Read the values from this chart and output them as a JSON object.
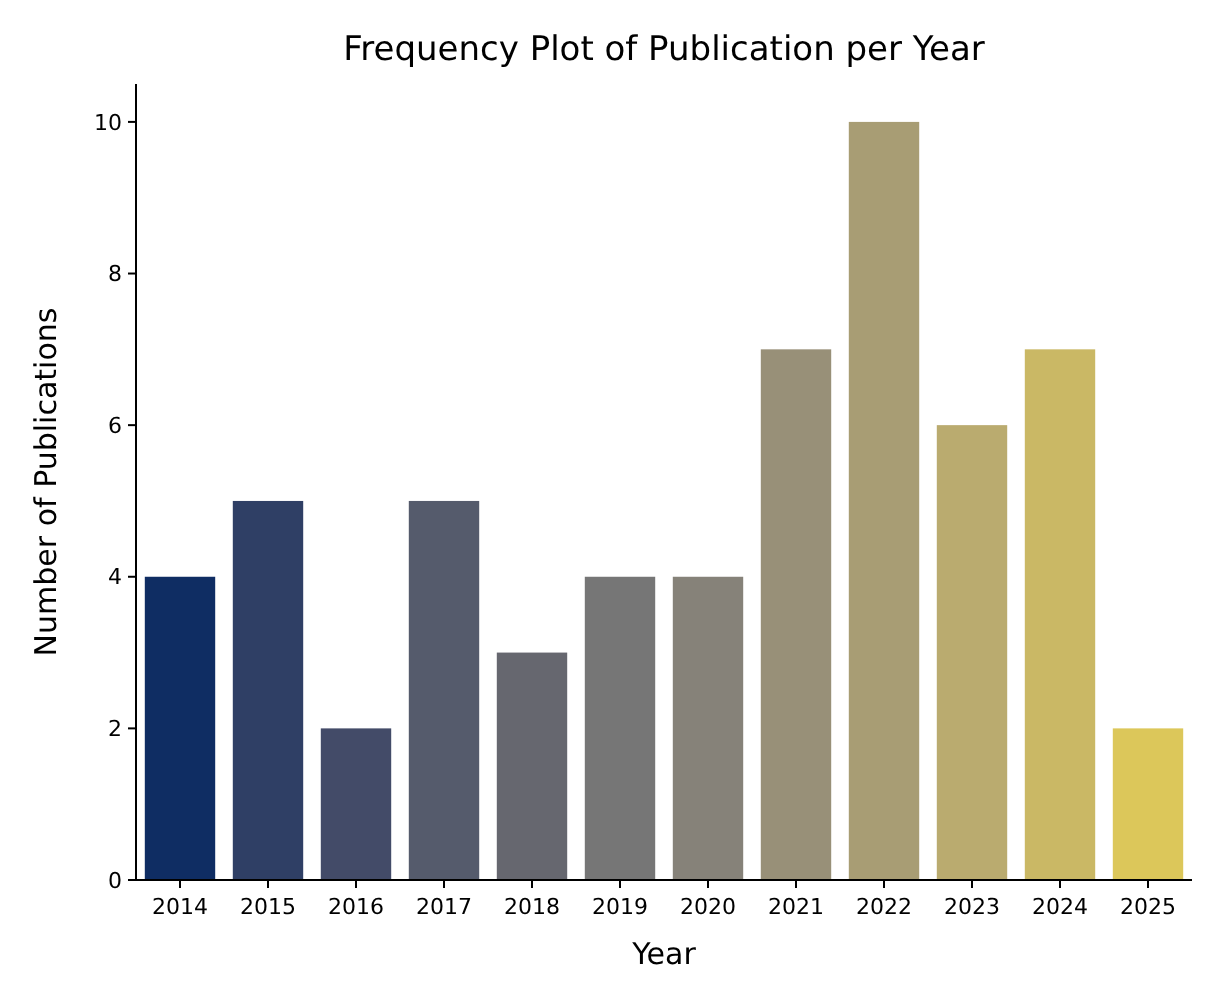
{
  "chart_data": {
    "type": "bar",
    "title": "Frequency Plot of Publication per Year",
    "xlabel": "Year",
    "ylabel": "Number of Publications",
    "categories": [
      "2014",
      "2015",
      "2016",
      "2017",
      "2018",
      "2019",
      "2020",
      "2021",
      "2022",
      "2023",
      "2024",
      "2025"
    ],
    "values": [
      4,
      5,
      2,
      5,
      3,
      4,
      4,
      7,
      10,
      6,
      7,
      2
    ],
    "colors": [
      "#0f2d63",
      "#2f3f65",
      "#434b68",
      "#555b6c",
      "#66676f",
      "#767676",
      "#868279",
      "#989078",
      "#a89d74",
      "#baab6f",
      "#cab865",
      "#dcc75a"
    ],
    "ylim": [
      0,
      10.5
    ],
    "yticks": [
      0,
      2,
      4,
      6,
      8,
      10
    ],
    "grid": false
  }
}
